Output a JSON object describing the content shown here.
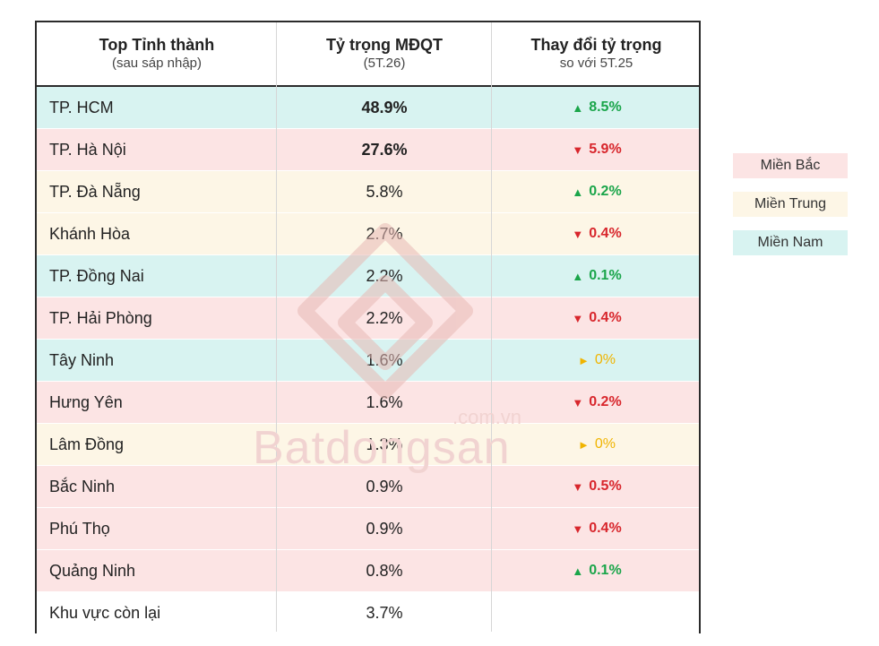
{
  "chart_data": {
    "type": "table",
    "columns": [
      {
        "title": "Top Tỉnh thành",
        "subtitle": "(sau sáp nhập)"
      },
      {
        "title": "Tỷ trọng MĐQT",
        "subtitle": "(5T.26)"
      },
      {
        "title": "Thay đổi tỷ trọng",
        "subtitle": "so với 5T.25"
      }
    ],
    "rows": [
      {
        "name": "TP. HCM",
        "share": "48.9%",
        "share_value": 48.9,
        "change": "8.5%",
        "change_value": 8.5,
        "direction": "up",
        "region": "Miền Nam",
        "bold": true
      },
      {
        "name": "TP. Hà Nội",
        "share": "27.6%",
        "share_value": 27.6,
        "change": "5.9%",
        "change_value": -5.9,
        "direction": "down",
        "region": "Miền Bắc",
        "bold": true
      },
      {
        "name": "TP. Đà Nẵng",
        "share": "5.8%",
        "share_value": 5.8,
        "change": "0.2%",
        "change_value": 0.2,
        "direction": "up",
        "region": "Miền Trung",
        "bold": false
      },
      {
        "name": "Khánh Hòa",
        "share": "2.7%",
        "share_value": 2.7,
        "change": "0.4%",
        "change_value": -0.4,
        "direction": "down",
        "region": "Miền Trung",
        "bold": false
      },
      {
        "name": "TP. Đồng Nai",
        "share": "2.2%",
        "share_value": 2.2,
        "change": "0.1%",
        "change_value": 0.1,
        "direction": "up",
        "region": "Miền Nam",
        "bold": false
      },
      {
        "name": "TP. Hải Phòng",
        "share": "2.2%",
        "share_value": 2.2,
        "change": "0.4%",
        "change_value": -0.4,
        "direction": "down",
        "region": "Miền Bắc",
        "bold": false
      },
      {
        "name": "Tây Ninh",
        "share": "1.6%",
        "share_value": 1.6,
        "change": "0%",
        "change_value": 0,
        "direction": "flat",
        "region": "Miền Nam",
        "bold": false
      },
      {
        "name": "Hưng Yên",
        "share": "1.6%",
        "share_value": 1.6,
        "change": "0.2%",
        "change_value": -0.2,
        "direction": "down",
        "region": "Miền Bắc",
        "bold": false
      },
      {
        "name": "Lâm Đồng",
        "share": "1.3%",
        "share_value": 1.3,
        "change": "0%",
        "change_value": 0,
        "direction": "flat",
        "region": "Miền Trung",
        "bold": false
      },
      {
        "name": "Bắc Ninh",
        "share": "0.9%",
        "share_value": 0.9,
        "change": "0.5%",
        "change_value": -0.5,
        "direction": "down",
        "region": "Miền Bắc",
        "bold": false
      },
      {
        "name": "Phú Thọ",
        "share": "0.9%",
        "share_value": 0.9,
        "change": "0.4%",
        "change_value": -0.4,
        "direction": "down",
        "region": "Miền Bắc",
        "bold": false
      },
      {
        "name": "Quảng Ninh",
        "share": "0.8%",
        "share_value": 0.8,
        "change": "0.1%",
        "change_value": 0.1,
        "direction": "up",
        "region": "Miền Bắc",
        "bold": false
      },
      {
        "name": "Khu vực còn lại",
        "share": "3.7%",
        "share_value": 3.7,
        "change": "",
        "change_value": null,
        "direction": "none",
        "region": "",
        "bold": false
      }
    ],
    "legend": [
      {
        "label": "Miền Bắc",
        "color": "#fce4e4"
      },
      {
        "label": "Miền Trung",
        "color": "#fdf6e6"
      },
      {
        "label": "Miền Nam",
        "color": "#d8f3f1"
      }
    ]
  },
  "colors": {
    "up": "#1aa54a",
    "down": "#d8262c",
    "flat": "#f0b400",
    "text": "#222222",
    "border": "#2b2b2b"
  },
  "watermark": {
    "brand": "Batdongsan",
    "suffix": ".com.vn"
  }
}
